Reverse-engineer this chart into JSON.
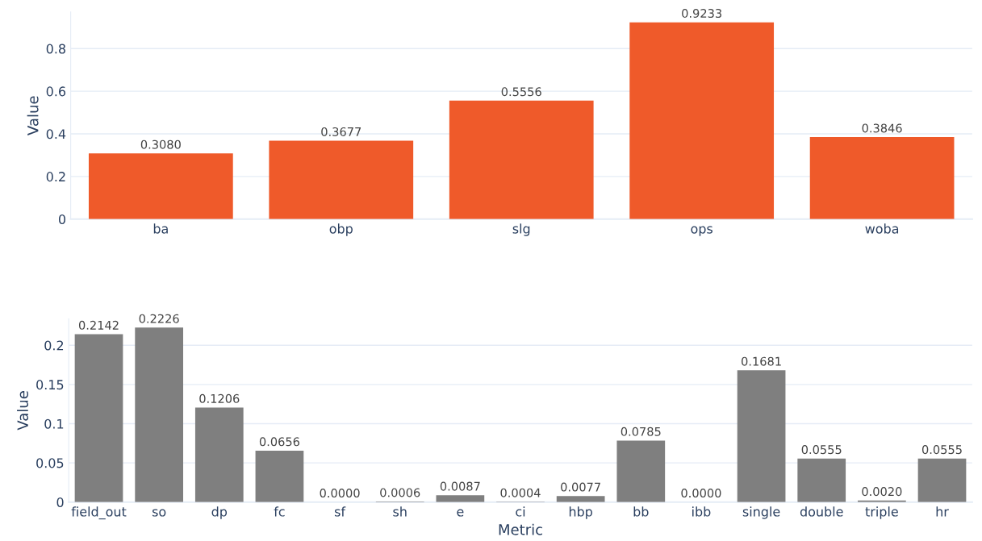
{
  "chart_data": [
    {
      "type": "bar",
      "ylabel": "Value",
      "categories": [
        "ba",
        "obp",
        "slg",
        "ops",
        "woba"
      ],
      "series": [
        {
          "color": "#ef5a2a",
          "values": [
            0.308,
            0.3677,
            0.5556,
            0.9233,
            0.3846
          ],
          "value_labels": [
            "0.3080",
            "0.3677",
            "0.5556",
            "0.9233",
            "0.3846"
          ]
        }
      ],
      "ylim": [
        0,
        0.972
      ],
      "yticks": [
        0,
        0.2,
        0.4,
        0.6,
        0.8
      ],
      "grid": "y",
      "legend": false
    },
    {
      "type": "bar",
      "xlabel": "Metric",
      "ylabel": "Value",
      "categories": [
        "field_out",
        "so",
        "dp",
        "fc",
        "sf",
        "sh",
        "e",
        "ci",
        "hbp",
        "bb",
        "ibb",
        "single",
        "double",
        "triple",
        "hr"
      ],
      "series": [
        {
          "color": "#7f7f7f",
          "values": [
            0.2142,
            0.2226,
            0.1206,
            0.0656,
            0.0,
            0.0006,
            0.0087,
            0.0004,
            0.0077,
            0.0785,
            0.0,
            0.1681,
            0.0555,
            0.002,
            0.0555
          ],
          "value_labels": [
            "0.2142",
            "0.2226",
            "0.1206",
            "0.0656",
            "0.0000",
            "0.0006",
            "0.0087",
            "0.0004",
            "0.0077",
            "0.0785",
            "0.0000",
            "0.1681",
            "0.0555",
            "0.0020",
            "0.0555"
          ]
        }
      ],
      "ylim": [
        0,
        0.234
      ],
      "yticks": [
        0,
        0.05,
        0.1,
        0.15,
        0.2
      ],
      "grid": "y",
      "legend": false
    }
  ]
}
